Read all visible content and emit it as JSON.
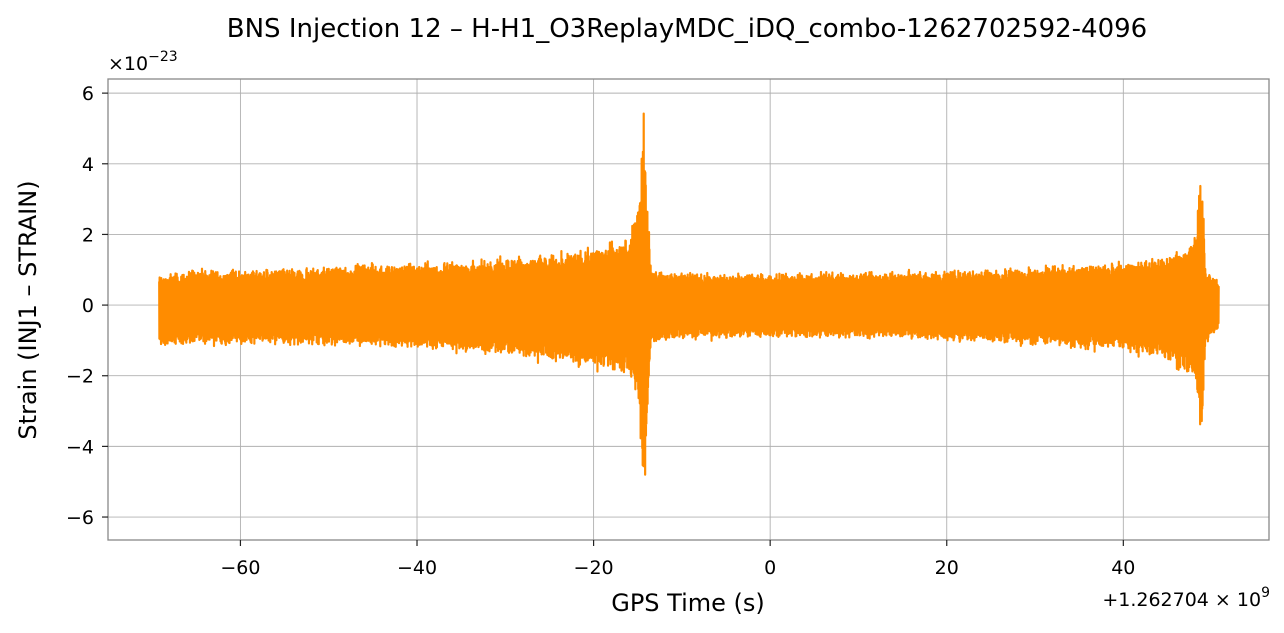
{
  "chart_data": {
    "type": "line",
    "title": "BNS Injection 12 – H-H1_O3ReplayMDC_iDQ_combo-1262702592-4096",
    "xlabel": "GPS Time (s)",
    "ylabel": "Strain (INJ1 – STRAIN)",
    "x_offset_label": "+1.262704 × 10",
    "x_offset_exponent": "9",
    "y_scale_label": "×10",
    "y_scale_exponent": "−23",
    "x_ticks": [
      -60,
      -40,
      -20,
      0,
      20,
      40
    ],
    "x_tick_labels": [
      "−60",
      "−40",
      "−20",
      "0",
      "20",
      "40"
    ],
    "y_ticks": [
      -6,
      -4,
      -2,
      0,
      2,
      4,
      6
    ],
    "y_tick_labels": [
      "−6",
      "−4",
      "−2",
      "0",
      "2",
      "4",
      "6"
    ],
    "xlim": [
      -75,
      56.5
    ],
    "ylim": [
      -6.65,
      6.4
    ],
    "grid": true,
    "line_color": "#ff8c00",
    "series": [
      {
        "x_range": [
          -69.2,
          50.8
        ],
        "envelope": [
          [
            -69.2,
            0.9,
            -1.3
          ],
          [
            -65,
            1.1,
            -1.2
          ],
          [
            -55,
            1.1,
            -1.2
          ],
          [
            -45,
            1.25,
            -1.3
          ],
          [
            -35,
            1.35,
            -1.4
          ],
          [
            -25,
            1.55,
            -1.7
          ],
          [
            -20,
            1.75,
            -1.95
          ],
          [
            -16,
            2.05,
            -2.2
          ],
          [
            -14.9,
            3.2,
            -3.0
          ],
          [
            -14.3,
            5.8,
            -6.1
          ],
          [
            -14.0,
            4.0,
            -4.5
          ],
          [
            -13.5,
            1.1,
            -1.2
          ],
          [
            -10,
            1.0,
            -1.05
          ],
          [
            0,
            0.95,
            -1.0
          ],
          [
            10,
            1.0,
            -1.0
          ],
          [
            20,
            1.05,
            -1.1
          ],
          [
            30,
            1.15,
            -1.25
          ],
          [
            40,
            1.3,
            -1.4
          ],
          [
            45,
            1.5,
            -1.7
          ],
          [
            48,
            2.0,
            -2.3
          ],
          [
            48.9,
            4.35,
            -4.35
          ],
          [
            49.3,
            1.1,
            -1.3
          ],
          [
            50.8,
            0.75,
            -0.7
          ]
        ]
      }
    ]
  }
}
